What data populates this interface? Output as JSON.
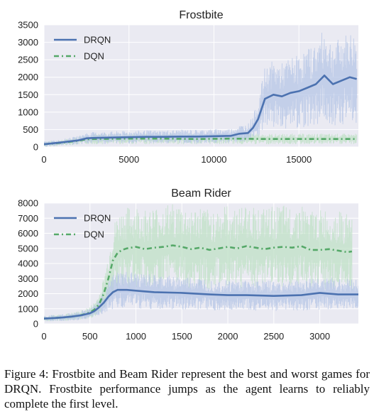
{
  "colors": {
    "plot_bg": "#EAEAF2",
    "grid": "#ffffff",
    "drqn": "#4C72B0",
    "dqn": "#55A868",
    "drqn_band": "#B6C6E6",
    "dqn_band": "#BFE0C6"
  },
  "chart_data": [
    {
      "type": "line",
      "title": "Frostbite",
      "xlabel": "",
      "ylabel": "",
      "xlim": [
        0,
        18500
      ],
      "ylim": [
        0,
        3500
      ],
      "xticks": [
        "0",
        "5000",
        "10000",
        "15000"
      ],
      "yticks": [
        "0",
        "500",
        "1000",
        "1500",
        "2000",
        "2500",
        "3000",
        "3500"
      ],
      "grid": true,
      "legend_position": "top-left",
      "series": [
        {
          "name": "DRQN",
          "style": "solid",
          "x": [
            0,
            1000,
            2000,
            2500,
            3000,
            4000,
            5000,
            6000,
            7000,
            8000,
            9000,
            10000,
            11000,
            11500,
            12000,
            12300,
            12600,
            13000,
            13500,
            14000,
            14500,
            15000,
            15500,
            16000,
            16500,
            17000,
            17500,
            18000,
            18400
          ],
          "y": [
            80,
            130,
            190,
            250,
            260,
            270,
            280,
            290,
            290,
            300,
            300,
            310,
            320,
            380,
            400,
            550,
            800,
            1380,
            1500,
            1450,
            1550,
            1600,
            1700,
            1800,
            2050,
            1800,
            1900,
            2000,
            1950
          ]
        },
        {
          "name": "DQN",
          "style": "dashdot",
          "x": [
            0,
            1000,
            2000,
            2500,
            3000,
            5000,
            7000,
            9000,
            11000,
            13000,
            15000,
            17000,
            18400
          ],
          "y": [
            80,
            120,
            180,
            220,
            230,
            240,
            240,
            230,
            240,
            230,
            230,
            230,
            230
          ]
        }
      ]
    },
    {
      "type": "line",
      "title": "Beam Rider",
      "xlabel": "",
      "ylabel": "",
      "xlim": [
        0,
        3420
      ],
      "ylim": [
        0,
        8000
      ],
      "xticks": [
        "0",
        "500",
        "1000",
        "1500",
        "2000",
        "2500",
        "3000"
      ],
      "yticks": [
        "0",
        "1000",
        "2000",
        "3000",
        "4000",
        "5000",
        "6000",
        "7000",
        "8000"
      ],
      "grid": true,
      "legend_position": "top-left",
      "series": [
        {
          "name": "DRQN",
          "style": "solid",
          "x": [
            0,
            100,
            200,
            300,
            400,
            500,
            550,
            600,
            650,
            700,
            750,
            800,
            900,
            1000,
            1200,
            1500,
            1800,
            2000,
            2200,
            2500,
            2800,
            3000,
            3200,
            3420
          ],
          "y": [
            350,
            380,
            420,
            480,
            560,
            700,
            850,
            1100,
            1400,
            1800,
            2100,
            2250,
            2250,
            2200,
            2100,
            2050,
            1950,
            1900,
            1900,
            1850,
            1900,
            2050,
            1950,
            1950
          ]
        },
        {
          "name": "DQN",
          "style": "dashdot",
          "x": [
            0,
            100,
            200,
            300,
            400,
            500,
            550,
            600,
            650,
            700,
            750,
            800,
            850,
            900,
            1000,
            1100,
            1200,
            1300,
            1400,
            1500,
            1600,
            1700,
            1800,
            1900,
            2000,
            2100,
            2200,
            2300,
            2400,
            2500,
            2600,
            2700,
            2800,
            2900,
            3000,
            3100,
            3200,
            3300,
            3350
          ],
          "y": [
            350,
            380,
            420,
            480,
            570,
            750,
            950,
            1300,
            2000,
            3000,
            4200,
            4700,
            4900,
            5000,
            5100,
            4950,
            5050,
            5100,
            5200,
            5100,
            4950,
            5050,
            4900,
            5000,
            5100,
            5000,
            5150,
            5050,
            4950,
            5050,
            5100,
            5050,
            5150,
            4900,
            4900,
            4950,
            4850,
            4750,
            4800
          ]
        }
      ]
    }
  ],
  "caption": "Figure 4: Frostbite and Beam Rider represent the best and worst games for DRQN. Frostbite performance jumps as the agent learns to reliably complete the first level."
}
